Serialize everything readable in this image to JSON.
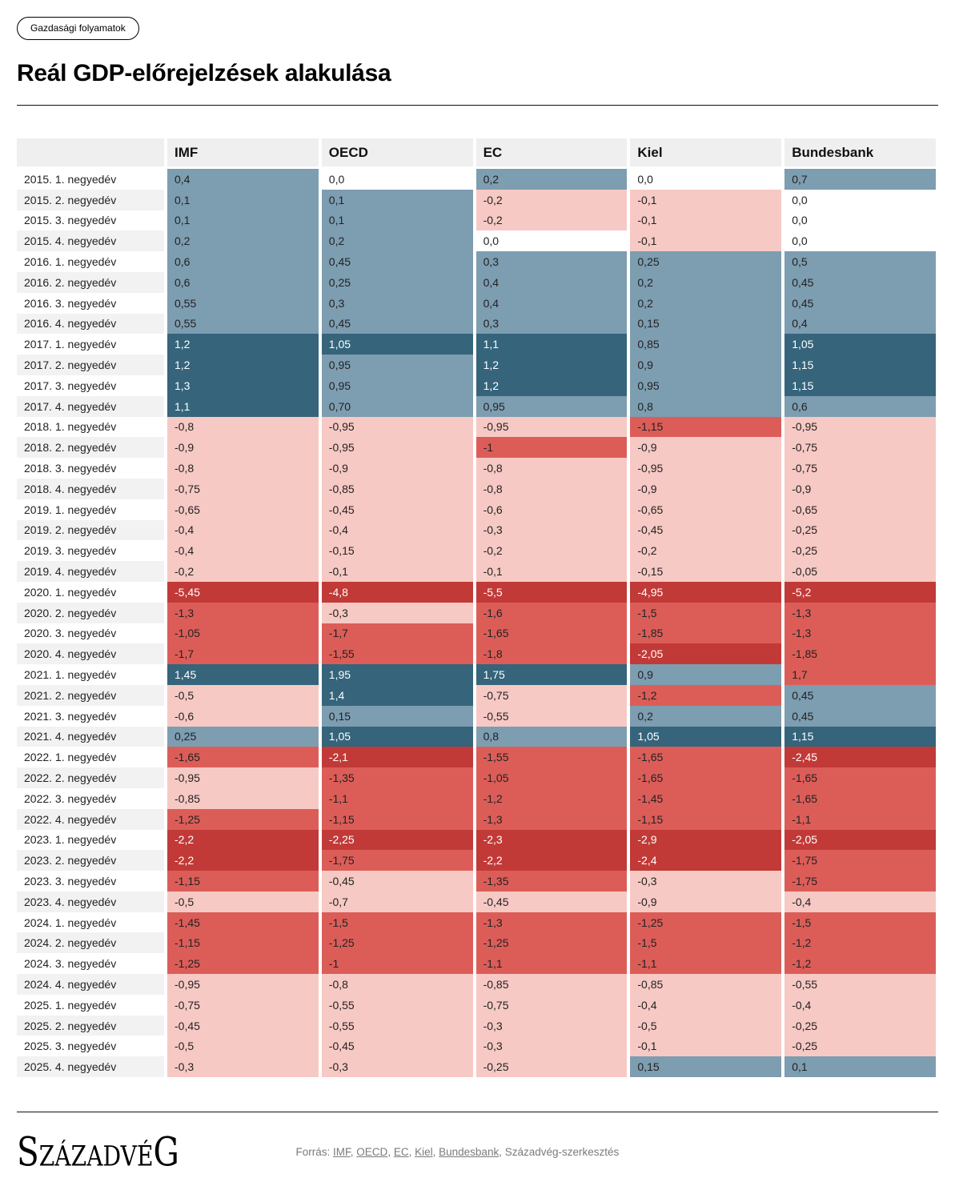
{
  "tag_label": "Gazdasági folyamatok",
  "title": "Reál GDP-előrejelzések alakulása",
  "chart_data": {
    "type": "heatmap",
    "title": "Reál GDP-előrejelzések alakulása",
    "columns": [
      "IMF",
      "OECD",
      "EC",
      "Kiel",
      "Bundesbank"
    ],
    "rows": [
      {
        "label": "2015. 1. negyedév",
        "values": [
          "0,4",
          "0,0",
          "0,2",
          "0,0",
          "0,7"
        ]
      },
      {
        "label": "2015. 2. negyedév",
        "values": [
          "0,1",
          "0,1",
          "-0,2",
          "-0,1",
          "0,0"
        ]
      },
      {
        "label": "2015. 3. negyedév",
        "values": [
          "0,1",
          "0,1",
          "-0,2",
          "-0,1",
          "0,0"
        ]
      },
      {
        "label": "2015. 4. negyedév",
        "values": [
          "0,2",
          "0,2",
          "0,0",
          "-0,1",
          "0,0"
        ]
      },
      {
        "label": "2016. 1. negyedév",
        "values": [
          "0,6",
          "0,45",
          "0,3",
          "0,25",
          "0,5"
        ]
      },
      {
        "label": "2016. 2. negyedév",
        "values": [
          "0,6",
          "0,25",
          "0,4",
          "0,2",
          "0,45"
        ]
      },
      {
        "label": "2016. 3. negyedév",
        "values": [
          "0,55",
          "0,3",
          "0,4",
          "0,2",
          "0,45"
        ]
      },
      {
        "label": "2016. 4. negyedév",
        "values": [
          "0,55",
          "0,45",
          "0,3",
          "0,15",
          "0,4"
        ]
      },
      {
        "label": "2017. 1. negyedév",
        "values": [
          "1,2",
          "1,05",
          "1,1",
          "0,85",
          "1,05"
        ]
      },
      {
        "label": "2017. 2. negyedév",
        "values": [
          "1,2",
          "0,95",
          "1,2",
          "0,9",
          "1,15"
        ]
      },
      {
        "label": "2017. 3. negyedév",
        "values": [
          "1,3",
          "0,95",
          "1,2",
          "0,95",
          "1,15"
        ]
      },
      {
        "label": "2017. 4. negyedév",
        "values": [
          "1,1",
          "0,70",
          "0,95",
          "0,8",
          "0,6"
        ]
      },
      {
        "label": "2018. 1. negyedév",
        "values": [
          "-0,8",
          "-0,95",
          "-0,95",
          "-1,15",
          "-0,95"
        ]
      },
      {
        "label": "2018. 2. negyedév",
        "values": [
          "-0,9",
          "-0,95",
          "-1",
          "-0,9",
          "-0,75"
        ]
      },
      {
        "label": "2018. 3. negyedév",
        "values": [
          "-0,8",
          "-0,9",
          "-0,8",
          "-0,95",
          "-0,75"
        ]
      },
      {
        "label": "2018. 4. negyedév",
        "values": [
          "-0,75",
          "-0,85",
          "-0,8",
          "-0,9",
          "-0,9"
        ]
      },
      {
        "label": "2019. 1. negyedév",
        "values": [
          "-0,65",
          "-0,45",
          "-0,6",
          "-0,65",
          "-0,65"
        ]
      },
      {
        "label": "2019. 2. negyedév",
        "values": [
          "-0,4",
          "-0,4",
          "-0,3",
          "-0,45",
          "-0,25"
        ]
      },
      {
        "label": "2019. 3. negyedév",
        "values": [
          "-0,4",
          "-0,15",
          "-0,2",
          "-0,2",
          "-0,25"
        ]
      },
      {
        "label": "2019. 4. negyedév",
        "values": [
          "-0,2",
          "-0,1",
          "-0,1",
          "-0,15",
          "-0,05"
        ]
      },
      {
        "label": "2020. 1. negyedév",
        "values": [
          "-5,45",
          "-4,8",
          "-5,5",
          "-4,95",
          "-5,2"
        ]
      },
      {
        "label": "2020. 2. negyedév",
        "values": [
          "-1,3",
          "-0,3",
          "-1,6",
          "-1,5",
          "-1,3"
        ]
      },
      {
        "label": "2020. 3. negyedév",
        "values": [
          "-1,05",
          "-1,7",
          "-1,65",
          "-1,85",
          "-1,3"
        ]
      },
      {
        "label": "2020. 4. negyedév",
        "values": [
          "-1,7",
          "-1,55",
          "-1,8",
          "-2,05",
          "-1,85"
        ]
      },
      {
        "label": "2021. 1. negyedév",
        "values": [
          "1,45",
          "1,95",
          "1,75",
          "0,9",
          "1,7"
        ]
      },
      {
        "label": "2021. 2. negyedév",
        "values": [
          "-0,5",
          "1,4",
          "-0,75",
          "-1,2",
          "0,45"
        ]
      },
      {
        "label": "2021. 3. negyedév",
        "values": [
          "-0,6",
          "0,15",
          "-0,55",
          "0,2",
          "0,45"
        ]
      },
      {
        "label": "2021. 4. negyedév",
        "values": [
          "0,25",
          "1,05",
          "0,8",
          "1,05",
          "1,15"
        ]
      },
      {
        "label": "2022. 1. negyedév",
        "values": [
          "-1,65",
          "-2,1",
          "-1,55",
          "-1,65",
          "-2,45"
        ]
      },
      {
        "label": "2022. 2. negyedév",
        "values": [
          "-0,95",
          "-1,35",
          "-1,05",
          "-1,65",
          "-1,65"
        ]
      },
      {
        "label": "2022. 3. negyedév",
        "values": [
          "-0,85",
          "-1,1",
          "-1,2",
          "-1,45",
          "-1,65"
        ]
      },
      {
        "label": "2022. 4. negyedév",
        "values": [
          "-1,25",
          "-1,15",
          "-1,3",
          "-1,15",
          "-1,1"
        ]
      },
      {
        "label": "2023. 1. negyedév",
        "values": [
          "-2,2",
          "-2,25",
          "-2,3",
          "-2,9",
          "-2,05"
        ]
      },
      {
        "label": "2023. 2. negyedév",
        "values": [
          "-2,2",
          "-1,75",
          "-2,2",
          "-2,4",
          "-1,75"
        ]
      },
      {
        "label": "2023. 3. negyedév",
        "values": [
          "-1,15",
          "-0,45",
          "-1,35",
          "-0,3",
          "-1,75"
        ]
      },
      {
        "label": "2023. 4. negyedév",
        "values": [
          "-0,5",
          "-0,7",
          "-0,45",
          "-0,9",
          "-0,4"
        ]
      },
      {
        "label": "2024. 1. negyedév",
        "values": [
          "-1,45",
          "-1,5",
          "-1,3",
          "-1,25",
          "-1,5"
        ]
      },
      {
        "label": "2024. 2. negyedév",
        "values": [
          "-1,15",
          "-1,25",
          "-1,25",
          "-1,5",
          "-1,2"
        ]
      },
      {
        "label": "2024. 3. negyedév",
        "values": [
          "-1,25",
          "-1",
          "-1,1",
          "-1,1",
          "-1,2"
        ]
      },
      {
        "label": "2024. 4. negyedév",
        "values": [
          "-0,95",
          "-0,8",
          "-0,85",
          "-0,85",
          "-0,55"
        ]
      },
      {
        "label": "2025. 1. negyedév",
        "values": [
          "-0,75",
          "-0,55",
          "-0,75",
          "-0,4",
          "-0,4"
        ]
      },
      {
        "label": "2025. 2. negyedév",
        "values": [
          "-0,45",
          "-0,55",
          "-0,3",
          "-0,5",
          "-0,25"
        ]
      },
      {
        "label": "2025. 3. negyedév",
        "values": [
          "-0,5",
          "-0,45",
          "-0,3",
          "-0,1",
          "-0,25"
        ]
      },
      {
        "label": "2025. 4. negyedév",
        "values": [
          "-0,3",
          "-0,3",
          "-0,25",
          "0,15",
          "0,1"
        ]
      }
    ],
    "palette": {
      "dark_blue": "#35647B",
      "steel_blue": "#7D9DB1",
      "white": "#FFFFFF",
      "light_pink": "#F7C9C4",
      "salmon": "#DC5D58",
      "dark_red": "#C13A37"
    },
    "color_scale_note": "v>=1 dark_blue; 0<v<1 steel_blue; v=0 white; -1<v<0 light_pink; -2<v<=-1 salmon; v<=-2 dark_red",
    "color_overrides": [
      {
        "row_index": 24,
        "col_index": 4,
        "color": "salmon"
      }
    ]
  },
  "footer": {
    "logo_text": "SzázadvéG",
    "source_prefix": "Forrás: ",
    "source_links": [
      "IMF",
      "OECD",
      "EC",
      "Kiel",
      "Bundesbank"
    ],
    "source_separator": ", ",
    "source_suffix": "Századvég-szerkesztés"
  }
}
